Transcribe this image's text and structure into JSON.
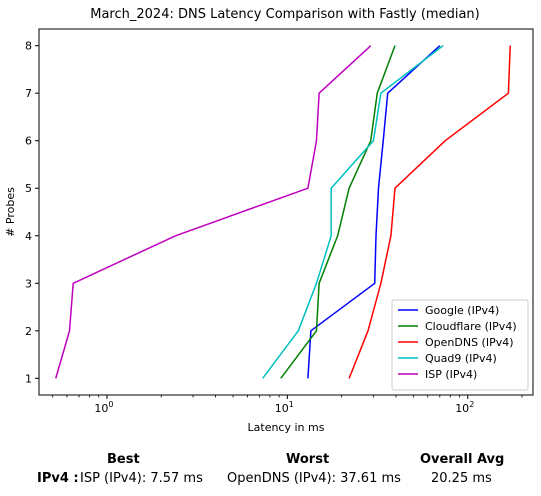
{
  "chart_data": {
    "type": "line",
    "title": "March_2024: DNS Latency Comparison with Fastly (median)",
    "xlabel": "Latency in ms",
    "ylabel": "# Probes",
    "xscale": "log",
    "xlim": [
      0.42,
      230
    ],
    "ylim": [
      0.65,
      8.35
    ],
    "x_ticks": [
      {
        "value": 1,
        "label": "10^0"
      },
      {
        "value": 10,
        "label": "10^1"
      },
      {
        "value": 100,
        "label": "10^2"
      }
    ],
    "y_ticks": [
      1,
      2,
      3,
      4,
      5,
      6,
      7,
      8
    ],
    "grid": false,
    "legend_position": "bottom-right",
    "series": [
      {
        "name": "Google (IPv4)",
        "color": "#0000ff",
        "points": [
          [
            13.0,
            1
          ],
          [
            13.5,
            2
          ],
          [
            30.5,
            3
          ],
          [
            31.0,
            4
          ],
          [
            32.0,
            5
          ],
          [
            34.0,
            6
          ],
          [
            36.0,
            7
          ],
          [
            70.0,
            8
          ]
        ]
      },
      {
        "name": "Cloudflare (IPv4)",
        "color": "#008000",
        "points": [
          [
            9.2,
            1
          ],
          [
            14.5,
            2
          ],
          [
            15.0,
            3
          ],
          [
            19.0,
            4
          ],
          [
            22.0,
            5
          ],
          [
            29.0,
            6
          ],
          [
            31.5,
            7
          ],
          [
            39.5,
            8
          ]
        ]
      },
      {
        "name": "OpenDNS (IPv4)",
        "color": "#ff0000",
        "points": [
          [
            22.0,
            1
          ],
          [
            28.0,
            2
          ],
          [
            33.0,
            3
          ],
          [
            37.5,
            4
          ],
          [
            39.5,
            5
          ],
          [
            75.0,
            6
          ],
          [
            168.0,
            7
          ],
          [
            172.0,
            8
          ]
        ]
      },
      {
        "name": "Quad9 (IPv4)",
        "color": "#00bfbf",
        "points": [
          [
            7.3,
            1
          ],
          [
            11.5,
            2
          ],
          [
            14.5,
            3
          ],
          [
            17.5,
            4
          ],
          [
            17.5,
            5
          ],
          [
            30.0,
            6
          ],
          [
            33.0,
            7
          ],
          [
            73.0,
            8
          ]
        ]
      },
      {
        "name": "ISP (IPv4)",
        "color": "#bf00bf",
        "points": [
          [
            0.52,
            1
          ],
          [
            0.62,
            2
          ],
          [
            0.65,
            3
          ],
          [
            2.4,
            4
          ],
          [
            13.0,
            5
          ],
          [
            14.5,
            6
          ],
          [
            15.0,
            7
          ],
          [
            29.0,
            8
          ]
        ]
      }
    ]
  },
  "summary": {
    "best_header": "Best",
    "worst_header": "Worst",
    "avg_header": "Overall Avg",
    "row_label": "IPv4 :",
    "best_value": "ISP (IPv4): 7.57 ms",
    "worst_value": "OpenDNS (IPv4): 37.61 ms",
    "avg_value": "20.25 ms"
  }
}
